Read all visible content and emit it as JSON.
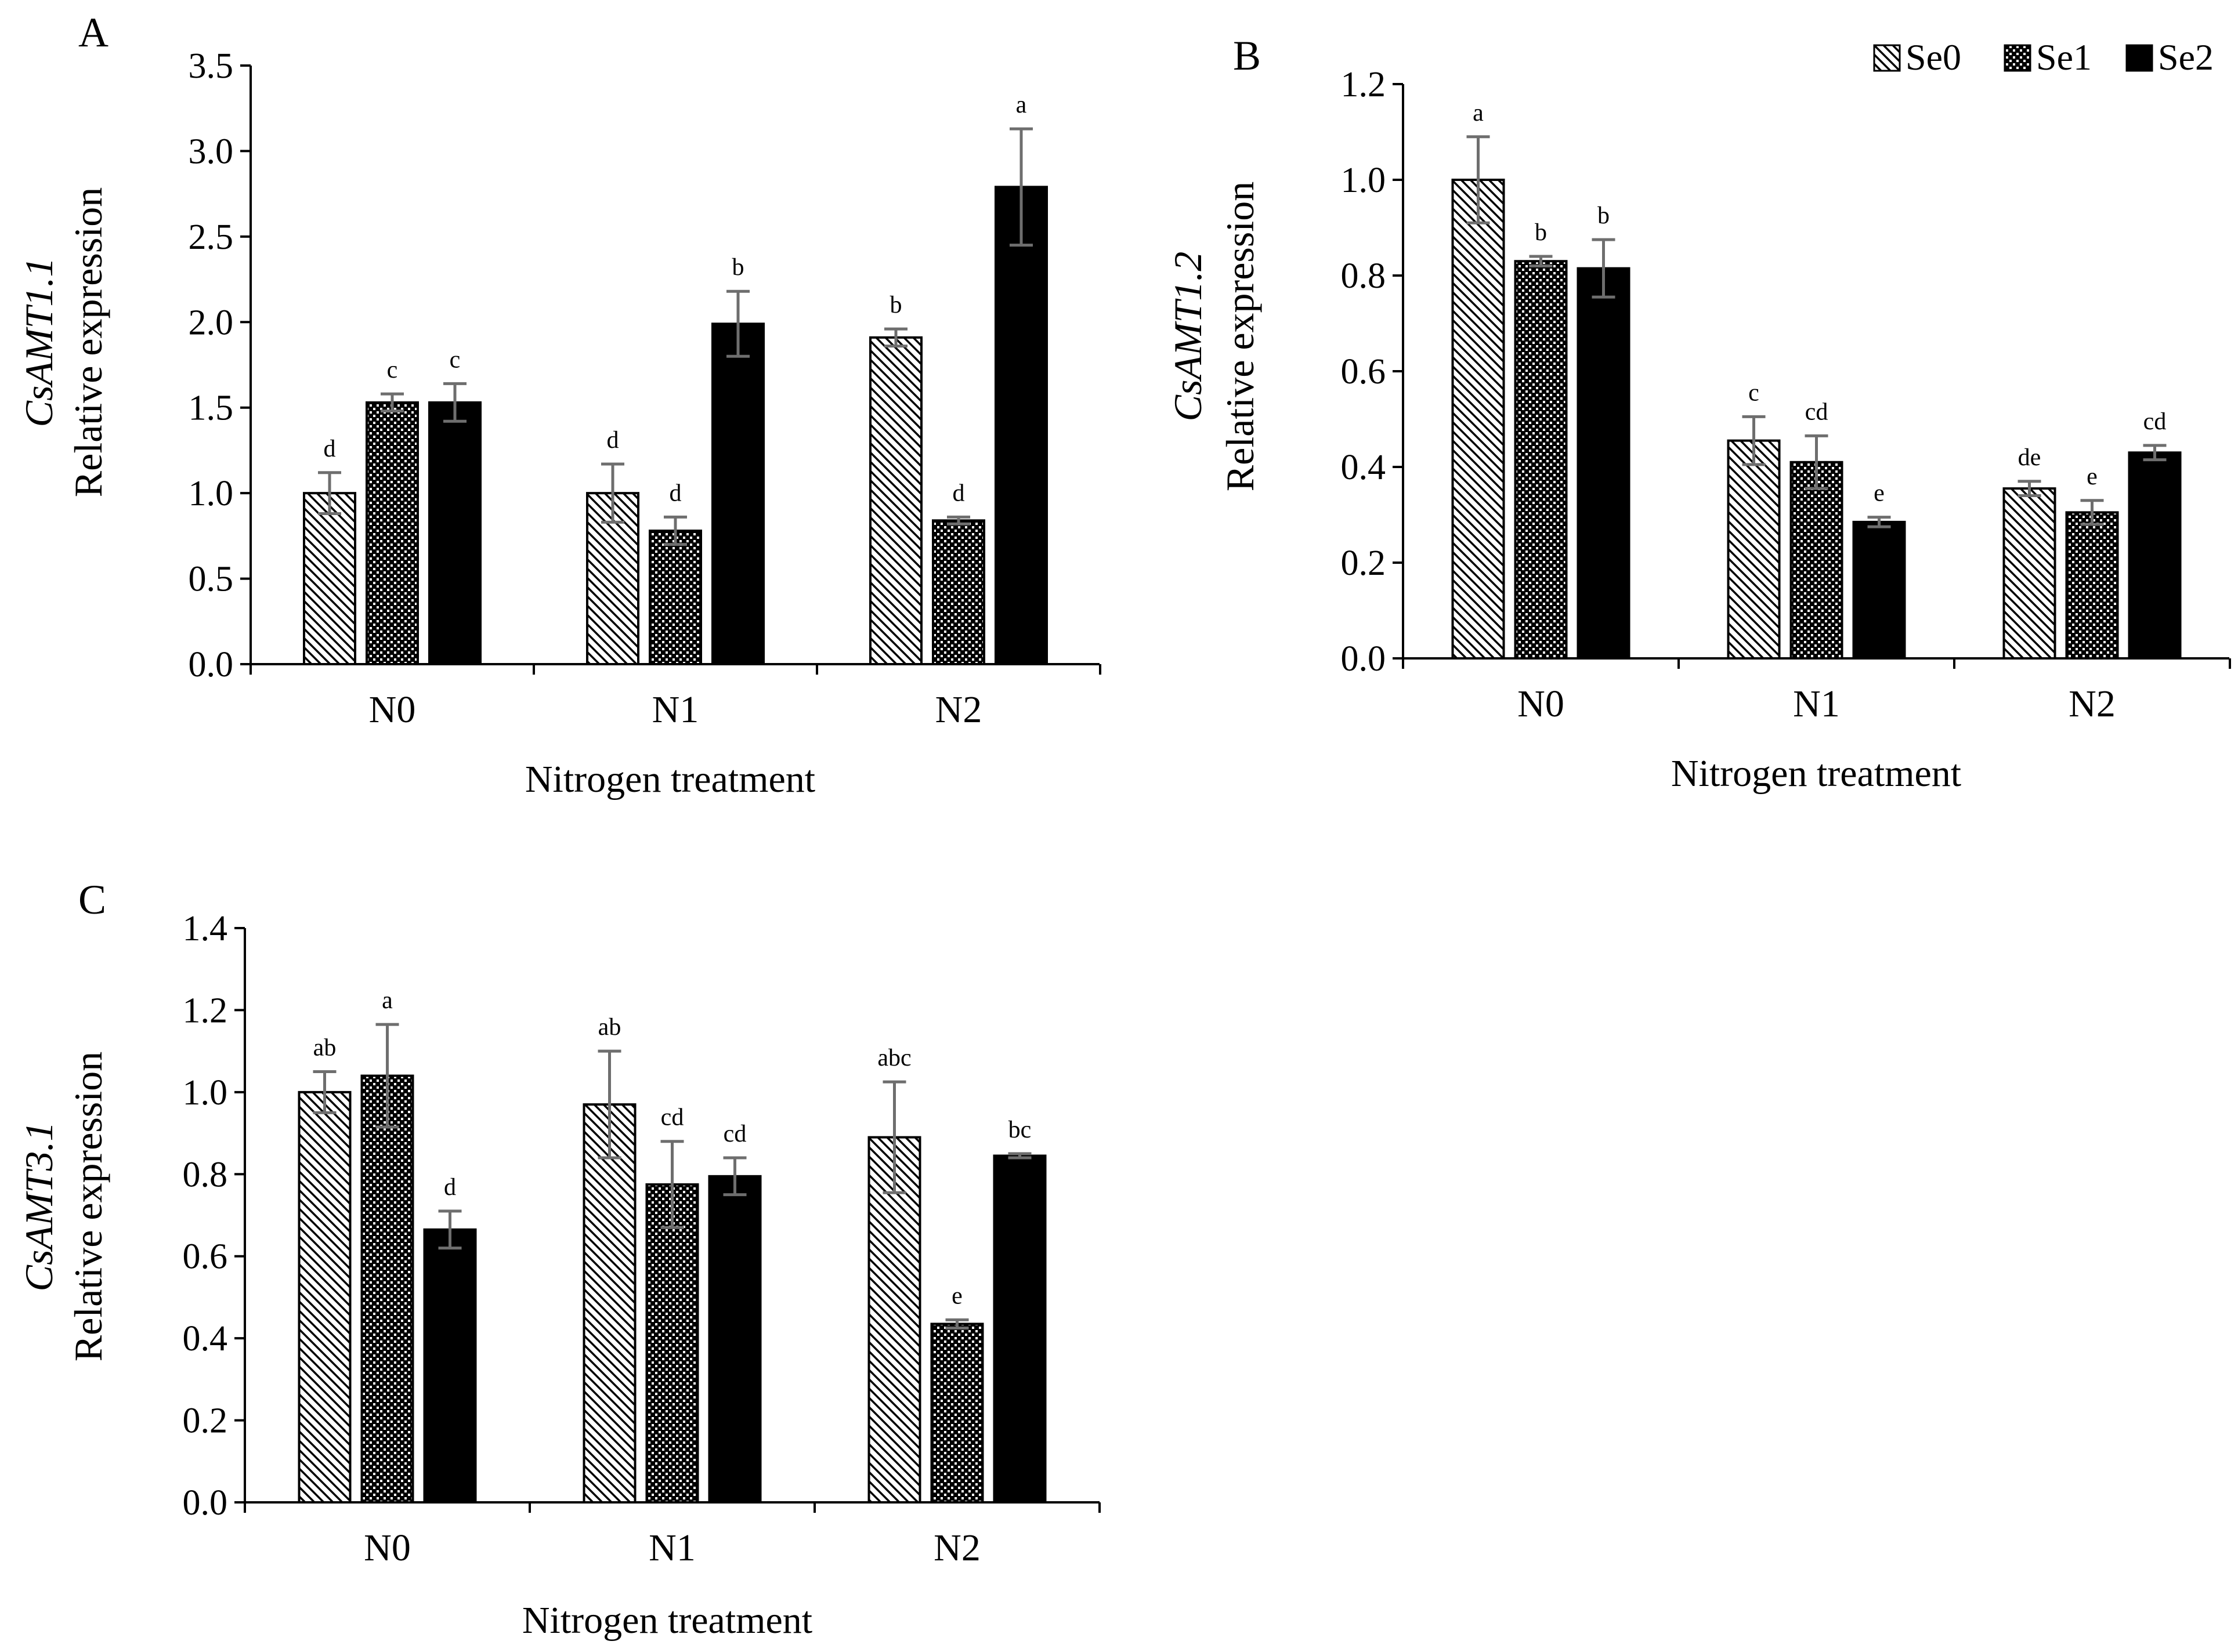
{
  "legend": [
    {
      "name": "Se0",
      "pattern": "diag"
    },
    {
      "name": "Se1",
      "pattern": "dots"
    },
    {
      "name": "Se2",
      "pattern": "solid"
    }
  ],
  "colors": {
    "bar_solid": "#000000",
    "error_bar": "#6e6e6e",
    "axis": "#000000"
  },
  "chart_data": [
    {
      "type": "bar",
      "panel_label": "A",
      "title": "",
      "ylabel_gene": "CsAMT1.1",
      "ylabel": "Relative expression",
      "xlabel": "Nitrogen treatment",
      "categories": [
        "N0",
        "N1",
        "N2"
      ],
      "ylim": [
        0,
        3.5
      ],
      "yticks": [
        "0.0",
        "0.5",
        "1.0",
        "1.5",
        "2.0",
        "2.5",
        "3.0",
        "3.5"
      ],
      "grid": false,
      "series": [
        {
          "name": "Se0",
          "values": [
            1.0,
            1.0,
            1.91
          ],
          "errors": [
            0.12,
            0.17,
            0.05
          ],
          "labels": [
            "d",
            "d",
            "b"
          ]
        },
        {
          "name": "Se1",
          "values": [
            1.53,
            0.78,
            0.84
          ],
          "errors": [
            0.05,
            0.08,
            0.02
          ],
          "labels": [
            "c",
            "d",
            "d"
          ]
        },
        {
          "name": "Se2",
          "values": [
            1.53,
            1.99,
            2.79
          ],
          "errors": [
            0.11,
            0.19,
            0.34
          ],
          "labels": [
            "c",
            "b",
            "a"
          ]
        }
      ]
    },
    {
      "type": "bar",
      "panel_label": "B",
      "title": "",
      "ylabel_gene": "CsAMT1.2",
      "ylabel": "Relative expression",
      "xlabel": "Nitrogen treatment",
      "categories": [
        "N0",
        "N1",
        "N2"
      ],
      "ylim": [
        0,
        1.2
      ],
      "yticks": [
        "0.0",
        "0.2",
        "0.4",
        "0.6",
        "0.8",
        "1.0",
        "1.2"
      ],
      "grid": false,
      "legend_position": "top-right",
      "series": [
        {
          "name": "Se0",
          "values": [
            1.0,
            0.455,
            0.355
          ],
          "errors": [
            0.09,
            0.05,
            0.015
          ],
          "labels": [
            "a",
            "c",
            "de"
          ]
        },
        {
          "name": "Se1",
          "values": [
            0.83,
            0.41,
            0.305
          ],
          "errors": [
            0.01,
            0.055,
            0.025
          ],
          "labels": [
            "b",
            "cd",
            "e"
          ]
        },
        {
          "name": "Se2",
          "values": [
            0.815,
            0.285,
            0.43
          ],
          "errors": [
            0.06,
            0.01,
            0.015
          ],
          "labels": [
            "b",
            "e",
            "cd"
          ]
        }
      ]
    },
    {
      "type": "bar",
      "panel_label": "C",
      "title": "",
      "ylabel_gene": "CsAMT3.1",
      "ylabel": "Relative expression",
      "xlabel": "Nitrogen treatment",
      "categories": [
        "N0",
        "N1",
        "N2"
      ],
      "ylim": [
        0,
        1.4
      ],
      "yticks": [
        "0.0",
        "0.2",
        "0.4",
        "0.6",
        "0.8",
        "1.0",
        "1.2",
        "1.4"
      ],
      "grid": false,
      "series": [
        {
          "name": "Se0",
          "values": [
            1.0,
            0.97,
            0.89
          ],
          "errors": [
            0.05,
            0.13,
            0.135
          ],
          "labels": [
            "ab",
            "ab",
            "abc"
          ]
        },
        {
          "name": "Se1",
          "values": [
            1.04,
            0.775,
            0.435
          ],
          "errors": [
            0.125,
            0.105,
            0.01
          ],
          "labels": [
            "a",
            "cd",
            "e"
          ]
        },
        {
          "name": "Se2",
          "values": [
            0.665,
            0.795,
            0.845
          ],
          "errors": [
            0.045,
            0.045,
            0.005
          ],
          "labels": [
            "d",
            "cd",
            "bc"
          ]
        }
      ]
    }
  ]
}
